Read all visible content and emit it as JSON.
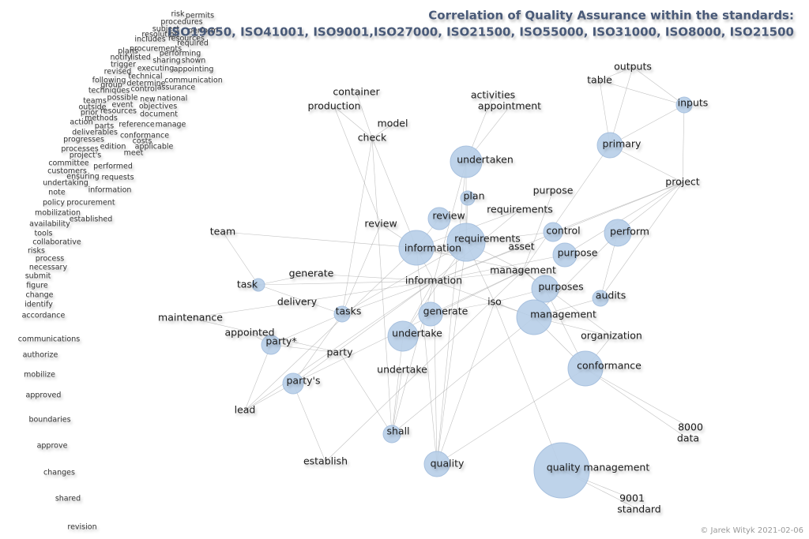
{
  "title": {
    "line1": "Correlation of Quality Assurance within the standards:",
    "line2": "ISO19650, ISO41001, ISO9001,ISO27000, ISO21500, ISO55000, ISO31000, ISO8000, ISO21500"
  },
  "word_cloud": [
    "risk",
    "permits",
    "procedures",
    "subject",
    "perform",
    "resolution",
    "resources",
    "includes",
    "required",
    "procurements",
    "plans",
    "performing",
    "notify",
    "listed",
    "sharing",
    "shown",
    "trigger",
    "executing",
    "appointing",
    "revised",
    "technical",
    "following",
    "determine",
    "communication",
    "group",
    "techniques",
    "control",
    "assurance",
    "teams",
    "possible",
    "new",
    "national",
    "outside",
    "event",
    "objectives",
    "prior",
    "resources",
    "document",
    "methods",
    "action",
    "parts",
    "reference",
    "manage",
    "deliverables",
    "conformance",
    "progresses",
    "costs",
    "edition",
    "applicable",
    "processes",
    "meet",
    "project's",
    "committee",
    "performed",
    "customers",
    "ensuring",
    "requests",
    "undertaking",
    "note",
    "information",
    "policy",
    "procurement",
    "mobilization",
    "established",
    "availability",
    "tools",
    "collaborative",
    "risks",
    "process",
    "necessary",
    "submit",
    "figure",
    "change",
    "identify",
    "accordance",
    "communications",
    "authorize",
    "mobilize",
    "approved",
    "boundaries",
    "approve",
    "changes",
    "shared",
    "revision"
  ],
  "nodes": [
    "outputs",
    "table",
    "inputs",
    "primary",
    "project",
    "container",
    "production",
    "model",
    "check",
    "activities",
    "appointment",
    "undertaken",
    "purpose",
    "plan",
    "requirements",
    "review",
    "review",
    "team",
    "control",
    "perform",
    "requirements",
    "information",
    "asset",
    "purpose",
    "management",
    "generate",
    "information",
    "task",
    "purposes",
    "audits",
    "delivery",
    "iso",
    "generate",
    "tasks",
    "management",
    "maintenance",
    "appointed",
    "organization",
    "undertake",
    "party*",
    "party",
    "undertake",
    "party's",
    "conformance",
    "lead",
    "8000",
    "data",
    "shall",
    "establish",
    "quality",
    "quality management",
    "9001",
    "standard"
  ],
  "credit": "© Jarek Wityk 2021-02-06"
}
